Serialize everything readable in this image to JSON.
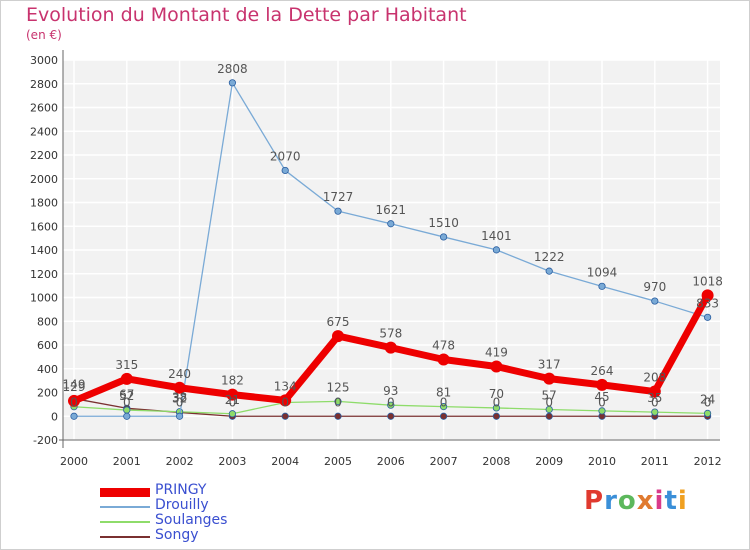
{
  "title": "Evolution du Montant de la Dette par Habitant",
  "unit": "(en €)",
  "logo": [
    "P",
    "r",
    "o",
    "x",
    "i",
    "t",
    "i"
  ],
  "logo_colors": [
    "#e03a2f",
    "#3a8fd8",
    "#5cb85c",
    "#e07a2f",
    "#d93a8a",
    "#3a8fd8",
    "#f0a020"
  ],
  "chart_data": {
    "type": "line",
    "x": [
      "2000",
      "2001",
      "2002",
      "2003",
      "2004",
      "2005",
      "2006",
      "2007",
      "2008",
      "2009",
      "2010",
      "2011",
      "2012"
    ],
    "ylim": [
      -200,
      3000
    ],
    "yticks": [
      "-200",
      "0",
      "200",
      "400",
      "600",
      "800",
      "1000",
      "1200",
      "1400",
      "1600",
      "1800",
      "2000",
      "2200",
      "2400",
      "2600",
      "2800",
      "3000"
    ],
    "series": [
      {
        "name": "PRINGY",
        "color": "#ee0000",
        "values": [
          129,
          315,
          240,
          182,
          134,
          675,
          578,
          478,
          419,
          317,
          264,
          208,
          1018
        ],
        "labels": [
          "129",
          "315",
          "240",
          "182",
          "134",
          "675",
          "578",
          "478",
          "419",
          "317",
          "264",
          "208",
          "1018"
        ]
      },
      {
        "name": "Drouilly",
        "color": "#7aaad6",
        "values": [
          0,
          0,
          0,
          2808,
          2070,
          1727,
          1621,
          1510,
          1401,
          1222,
          1094,
          970,
          833
        ],
        "labels": [
          "0",
          "0",
          "0",
          "2808",
          "2070",
          "1727",
          "1621",
          "1510",
          "1401",
          "1222",
          "1094",
          "970",
          "833"
        ]
      },
      {
        "name": "Soulanges",
        "color": "#8edc6a",
        "values": [
          80,
          52,
          38,
          21,
          116,
          125,
          93,
          81,
          70,
          57,
          45,
          35,
          24
        ],
        "labels": [
          "",
          "52",
          "38",
          "21",
          "",
          "125",
          "93",
          "81",
          "70",
          "57",
          "45",
          "35",
          "24"
        ]
      },
      {
        "name": "Songy",
        "color": "#7a3030",
        "values": [
          149,
          67,
          32,
          0,
          0,
          0,
          0,
          0,
          0,
          0,
          0,
          0,
          0
        ],
        "labels": [
          "149",
          "67",
          "32",
          "0",
          "0",
          "0",
          "0",
          "0",
          "0",
          "0",
          "0",
          "0",
          "0"
        ]
      }
    ]
  }
}
